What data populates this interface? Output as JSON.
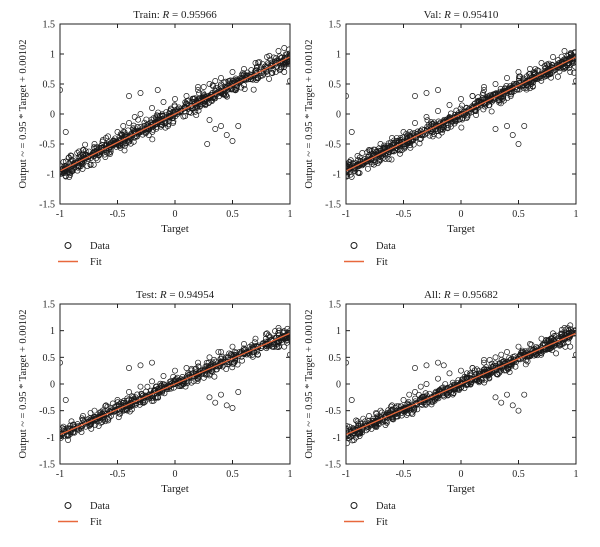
{
  "figure": {
    "colors": {
      "data_marker": "#1a1a1a",
      "fit_line": "#e8683c",
      "axes": "#222222"
    },
    "charts": [
      {
        "id": "train",
        "title_prefix": "Train:",
        "r_label": "R",
        "r_value": "= 0.95966",
        "xlabel": "Target",
        "ylabel": "Output ~ = 0.95 * Target + 0.00102",
        "legend": {
          "data_label": "Data",
          "fit_label": "Fit"
        }
      },
      {
        "id": "val",
        "title_prefix": "Val:",
        "r_label": "R",
        "r_value": "= 0.95410",
        "xlabel": "Target",
        "ylabel": "Output ~ = 0.95 * Target + 0.00102",
        "legend": {
          "data_label": "Data",
          "fit_label": "Fit"
        }
      },
      {
        "id": "test",
        "title_prefix": "Test:",
        "r_label": "R",
        "r_value": "= 0.94954",
        "xlabel": "Target",
        "ylabel": "Output ~ = 0.95 * Target + 0.00102",
        "legend": {
          "data_label": "Data",
          "fit_label": "Fit"
        }
      },
      {
        "id": "all",
        "title_prefix": "All:",
        "r_label": "R",
        "r_value": "= 0.95682",
        "xlabel": "Target",
        "ylabel": "Output ~ = 0.95 * Target + 0.00102",
        "legend": {
          "data_label": "Data",
          "fit_label": "Fit"
        }
      }
    ]
  },
  "chart_data": [
    {
      "type": "scatter",
      "title": "Train: R = 0.95966",
      "xlabel": "Target",
      "ylabel": "Output ~ = 0.95 * Target + 0.00102",
      "xlim": [
        -1,
        1
      ],
      "ylim": [
        -1.5,
        1.5
      ],
      "xticks": [
        -1,
        -0.5,
        0,
        0.5,
        1
      ],
      "xtick_labels": [
        "-1",
        "-0.5",
        "0",
        "0.5",
        "1"
      ],
      "yticks": [
        -1.5,
        -1,
        -0.5,
        0,
        0.5,
        1,
        1.5
      ],
      "ytick_labels": [
        "-1.5",
        "-1",
        "-0.5",
        "0",
        "0.5",
        "1",
        "1.5"
      ],
      "grid": false,
      "legend_position": "bottom-left-outside",
      "series": [
        {
          "name": "Data",
          "type": "scatter",
          "marker": "open-circle",
          "description_points": "dense band along y ≈ 0.95x with outliers",
          "x": [
            -1,
            -0.98,
            -0.95,
            -0.93,
            -0.9,
            -0.88,
            -0.85,
            -0.82,
            -0.8,
            -0.78,
            -0.75,
            -0.72,
            -0.7,
            -0.68,
            -0.65,
            -0.62,
            -0.6,
            -0.55,
            -0.5,
            -0.45,
            -0.4,
            -0.35,
            -0.3,
            -0.25,
            -0.2,
            -0.15,
            -0.1,
            -0.05,
            0,
            0.05,
            0.1,
            0.15,
            0.2,
            0.25,
            0.3,
            0.35,
            0.4,
            0.45,
            0.5,
            0.55,
            0.6,
            0.65,
            0.7,
            0.75,
            0.8,
            0.85,
            0.9,
            0.95,
            1,
            -0.97,
            -0.9,
            -0.85,
            -0.8,
            -0.7,
            -0.6,
            -0.5,
            -0.45,
            -0.4,
            -0.35,
            -0.3,
            -0.2,
            -0.1,
            0.0,
            0.1,
            0.2,
            0.25,
            0.3,
            0.35,
            0.4,
            0.5,
            0.6,
            0.7,
            0.8,
            0.9,
            0.95,
            -1,
            -0.95,
            -0.92,
            -0.4,
            -0.3,
            -0.15,
            0.3,
            0.35,
            0.4,
            0.45,
            0.5,
            0.55,
            0.95,
            1,
            0.2,
            0.28
          ],
          "y": [
            -0.95,
            -0.93,
            -0.9,
            -0.88,
            -0.86,
            -0.84,
            -0.81,
            -0.78,
            -0.76,
            -0.74,
            -0.71,
            -0.68,
            -0.66,
            -0.65,
            -0.62,
            -0.59,
            -0.57,
            -0.52,
            -0.47,
            -0.43,
            -0.38,
            -0.33,
            -0.28,
            -0.24,
            -0.19,
            -0.14,
            -0.09,
            -0.05,
            0.0,
            0.05,
            0.1,
            0.14,
            0.19,
            0.24,
            0.29,
            0.33,
            0.38,
            0.43,
            0.48,
            0.52,
            0.57,
            0.62,
            0.67,
            0.71,
            0.76,
            0.81,
            0.86,
            0.9,
            0.95,
            -0.8,
            -0.7,
            -0.65,
            -0.6,
            -0.5,
            -0.4,
            -0.3,
            -0.2,
            -0.15,
            -0.05,
            0.0,
            0.1,
            0.2,
            0.25,
            0.3,
            0.4,
            0.45,
            0.5,
            0.55,
            0.6,
            0.7,
            0.75,
            0.85,
            0.95,
            1.05,
            1.1,
            0.4,
            -0.3,
            -1.05,
            0.3,
            0.35,
            0.4,
            -0.1,
            -0.25,
            -0.2,
            -0.35,
            -0.45,
            -0.2,
            0.7,
            0.55,
            0.45,
            -0.5
          ]
        },
        {
          "name": "Fit",
          "type": "line",
          "x": [
            -1,
            1
          ],
          "y": [
            -0.94898,
            0.95102
          ]
        }
      ]
    },
    {
      "type": "scatter",
      "title": "Val: R = 0.95410",
      "xlabel": "Target",
      "ylabel": "Output ~ = 0.95 * Target + 0.00102",
      "xlim": [
        -1,
        1
      ],
      "ylim": [
        -1.5,
        1.5
      ],
      "xticks": [
        -1,
        -0.5,
        0,
        0.5,
        1
      ],
      "xtick_labels": [
        "-1",
        "-0.5",
        "0",
        "0.5",
        "1"
      ],
      "yticks": [
        -1.5,
        -1,
        -0.5,
        0,
        0.5,
        1,
        1.5
      ],
      "ytick_labels": [
        "-1.5",
        "-1",
        "-0.5",
        "0",
        "0.5",
        "1",
        "1.5"
      ],
      "grid": false,
      "legend_position": "bottom-left-outside",
      "series": [
        {
          "name": "Data",
          "type": "scatter",
          "marker": "open-circle",
          "x": [
            -1,
            -0.98,
            -0.95,
            -0.93,
            -0.9,
            -0.88,
            -0.85,
            -0.82,
            -0.8,
            -0.78,
            -0.75,
            -0.72,
            -0.7,
            -0.68,
            -0.65,
            -0.62,
            -0.6,
            -0.55,
            -0.5,
            -0.45,
            -0.4,
            -0.35,
            -0.3,
            -0.25,
            -0.2,
            -0.15,
            -0.1,
            -0.05,
            0,
            0.05,
            0.1,
            0.15,
            0.2,
            0.25,
            0.3,
            0.35,
            0.4,
            0.45,
            0.5,
            0.55,
            0.6,
            0.65,
            0.7,
            0.75,
            0.8,
            0.85,
            0.9,
            0.95,
            1,
            -0.97,
            -0.9,
            -0.8,
            -0.7,
            -0.6,
            -0.5,
            -0.4,
            -0.3,
            -0.2,
            -0.1,
            0.0,
            0.1,
            0.2,
            0.3,
            0.4,
            0.5,
            0.6,
            0.7,
            0.8,
            0.9,
            -1,
            -0.95,
            -0.4,
            -0.3,
            -0.2,
            0.1,
            0.3,
            0.4,
            0.45,
            0.5,
            0.55,
            0.95,
            1,
            0.2
          ],
          "y": [
            -0.95,
            -0.93,
            -0.9,
            -0.88,
            -0.86,
            -0.84,
            -0.81,
            -0.78,
            -0.76,
            -0.74,
            -0.71,
            -0.68,
            -0.66,
            -0.65,
            -0.62,
            -0.59,
            -0.57,
            -0.52,
            -0.47,
            -0.43,
            -0.38,
            -0.33,
            -0.28,
            -0.24,
            -0.19,
            -0.14,
            -0.09,
            -0.05,
            0.0,
            0.05,
            0.1,
            0.14,
            0.19,
            0.24,
            0.29,
            0.33,
            0.38,
            0.43,
            0.48,
            0.52,
            0.57,
            0.62,
            0.67,
            0.71,
            0.76,
            0.81,
            0.86,
            0.9,
            0.95,
            -0.8,
            -0.7,
            -0.6,
            -0.5,
            -0.4,
            -0.3,
            -0.15,
            -0.05,
            0.05,
            0.15,
            0.25,
            0.3,
            0.4,
            0.5,
            0.6,
            0.7,
            0.75,
            0.85,
            0.95,
            1.05,
            0.3,
            -0.3,
            0.3,
            0.35,
            0.4,
            0.3,
            -0.25,
            -0.2,
            -0.35,
            -0.5,
            -0.2,
            0.7,
            0.55,
            0.45
          ]
        },
        {
          "name": "Fit",
          "type": "line",
          "x": [
            -1,
            1
          ],
          "y": [
            -0.94898,
            0.95102
          ]
        }
      ]
    },
    {
      "type": "scatter",
      "title": "Test: R = 0.94954",
      "xlabel": "Target",
      "ylabel": "Output ~ = 0.95 * Target + 0.00102",
      "xlim": [
        -1,
        1
      ],
      "ylim": [
        -1.5,
        1.5
      ],
      "xticks": [
        -1,
        -0.5,
        0,
        0.5,
        1
      ],
      "xtick_labels": [
        "-1",
        "-0.5",
        "0",
        "0.5",
        "1"
      ],
      "yticks": [
        -1.5,
        -1,
        -0.5,
        0,
        0.5,
        1,
        1.5
      ],
      "ytick_labels": [
        "-1.5",
        "-1",
        "-0.5",
        "0",
        "0.5",
        "1",
        "1.5"
      ],
      "grid": false,
      "legend_position": "bottom-left-outside",
      "series": [
        {
          "name": "Data",
          "type": "scatter",
          "marker": "open-circle",
          "x": [
            -1,
            -0.98,
            -0.95,
            -0.93,
            -0.9,
            -0.88,
            -0.85,
            -0.82,
            -0.8,
            -0.78,
            -0.75,
            -0.72,
            -0.7,
            -0.68,
            -0.65,
            -0.62,
            -0.6,
            -0.55,
            -0.5,
            -0.45,
            -0.4,
            -0.35,
            -0.3,
            -0.25,
            -0.2,
            -0.15,
            -0.1,
            -0.05,
            0,
            0.05,
            0.1,
            0.15,
            0.2,
            0.25,
            0.3,
            0.35,
            0.4,
            0.45,
            0.5,
            0.55,
            0.6,
            0.65,
            0.7,
            0.75,
            0.8,
            0.85,
            0.9,
            0.95,
            1,
            -0.97,
            -0.9,
            -0.8,
            -0.7,
            -0.6,
            -0.5,
            -0.4,
            -0.3,
            -0.2,
            -0.1,
            0.0,
            0.1,
            0.2,
            0.3,
            0.4,
            0.5,
            0.6,
            0.7,
            0.8,
            0.9,
            -1,
            -0.95,
            -0.93,
            -0.4,
            -0.3,
            -0.2,
            0.3,
            0.35,
            0.4,
            0.45,
            0.5,
            0.55,
            0.65,
            0.95,
            1
          ],
          "y": [
            -0.95,
            -0.93,
            -0.9,
            -0.88,
            -0.86,
            -0.84,
            -0.81,
            -0.78,
            -0.76,
            -0.74,
            -0.71,
            -0.68,
            -0.66,
            -0.65,
            -0.62,
            -0.59,
            -0.57,
            -0.52,
            -0.47,
            -0.43,
            -0.38,
            -0.33,
            -0.28,
            -0.24,
            -0.19,
            -0.14,
            -0.09,
            -0.05,
            0.0,
            0.05,
            0.1,
            0.14,
            0.19,
            0.24,
            0.29,
            0.33,
            0.38,
            0.43,
            0.48,
            0.52,
            0.57,
            0.62,
            0.67,
            0.71,
            0.76,
            0.81,
            0.86,
            0.9,
            0.95,
            -0.8,
            -0.7,
            -0.6,
            -0.5,
            -0.4,
            -0.3,
            -0.15,
            -0.05,
            0.05,
            0.15,
            0.25,
            0.3,
            0.4,
            0.5,
            0.6,
            0.7,
            0.75,
            0.85,
            0.95,
            1.05,
            0.4,
            -0.3,
            -1.05,
            0.3,
            0.35,
            0.4,
            -0.25,
            -0.35,
            -0.2,
            -0.4,
            -0.45,
            -0.15,
            0.55,
            0.7,
            0.55
          ]
        },
        {
          "name": "Fit",
          "type": "line",
          "x": [
            -1,
            1
          ],
          "y": [
            -0.94898,
            0.95102
          ]
        }
      ]
    },
    {
      "type": "scatter",
      "title": "All: R = 0.95682",
      "xlabel": "Target",
      "ylabel": "Output ~ = 0.95 * Target + 0.00102",
      "xlim": [
        -1,
        1
      ],
      "ylim": [
        -1.5,
        1.5
      ],
      "xticks": [
        -1,
        -0.5,
        0,
        0.5,
        1
      ],
      "xtick_labels": [
        "-1",
        "-0.5",
        "0",
        "0.5",
        "1"
      ],
      "yticks": [
        -1.5,
        -1,
        -0.5,
        0,
        0.5,
        1,
        1.5
      ],
      "ytick_labels": [
        "-1.5",
        "-1",
        "-0.5",
        "0",
        "0.5",
        "1",
        "1.5"
      ],
      "grid": false,
      "legend_position": "bottom-left-outside",
      "series": [
        {
          "name": "Data",
          "type": "scatter",
          "marker": "open-circle",
          "x": [
            -1,
            -0.98,
            -0.95,
            -0.93,
            -0.9,
            -0.88,
            -0.85,
            -0.82,
            -0.8,
            -0.78,
            -0.75,
            -0.72,
            -0.7,
            -0.68,
            -0.65,
            -0.62,
            -0.6,
            -0.55,
            -0.5,
            -0.45,
            -0.4,
            -0.35,
            -0.3,
            -0.25,
            -0.2,
            -0.15,
            -0.1,
            -0.05,
            0,
            0.05,
            0.1,
            0.15,
            0.2,
            0.25,
            0.3,
            0.35,
            0.4,
            0.45,
            0.5,
            0.55,
            0.6,
            0.65,
            0.7,
            0.75,
            0.8,
            0.85,
            0.9,
            0.95,
            1,
            -0.97,
            -0.9,
            -0.85,
            -0.8,
            -0.7,
            -0.6,
            -0.5,
            -0.45,
            -0.4,
            -0.35,
            -0.3,
            -0.2,
            -0.1,
            0.0,
            0.1,
            0.2,
            0.25,
            0.3,
            0.35,
            0.4,
            0.5,
            0.6,
            0.7,
            0.8,
            0.9,
            0.95,
            -1,
            -0.95,
            -0.93,
            -0.4,
            -0.3,
            -0.2,
            -0.15,
            0.1,
            0.3,
            0.35,
            0.4,
            0.45,
            0.5,
            0.55,
            0.65,
            0.95,
            1,
            0.2
          ],
          "y": [
            -0.95,
            -0.93,
            -0.9,
            -0.88,
            -0.86,
            -0.84,
            -0.81,
            -0.78,
            -0.76,
            -0.74,
            -0.71,
            -0.68,
            -0.66,
            -0.65,
            -0.62,
            -0.59,
            -0.57,
            -0.52,
            -0.47,
            -0.43,
            -0.38,
            -0.33,
            -0.28,
            -0.24,
            -0.19,
            -0.14,
            -0.09,
            -0.05,
            0.0,
            0.05,
            0.1,
            0.14,
            0.19,
            0.24,
            0.29,
            0.33,
            0.38,
            0.43,
            0.48,
            0.52,
            0.57,
            0.62,
            0.67,
            0.71,
            0.76,
            0.81,
            0.86,
            0.9,
            0.95,
            -0.8,
            -0.7,
            -0.65,
            -0.6,
            -0.5,
            -0.4,
            -0.3,
            -0.2,
            -0.15,
            -0.05,
            0.0,
            0.1,
            0.2,
            0.25,
            0.3,
            0.4,
            0.45,
            0.5,
            0.55,
            0.6,
            0.7,
            0.75,
            0.85,
            0.95,
            1.05,
            1.1,
            0.4,
            -0.3,
            -1.05,
            0.3,
            0.35,
            0.4,
            0.35,
            0.3,
            -0.25,
            -0.35,
            -0.2,
            -0.4,
            -0.5,
            -0.2,
            0.55,
            0.7,
            0.55,
            0.45
          ]
        },
        {
          "name": "Fit",
          "type": "line",
          "x": [
            -1,
            1
          ],
          "y": [
            -0.94898,
            0.95102
          ]
        }
      ]
    }
  ]
}
